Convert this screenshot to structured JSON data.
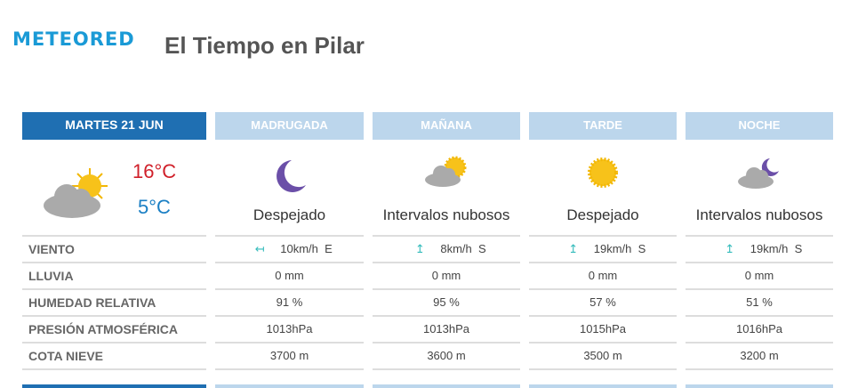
{
  "header": {
    "logo": "METEORED",
    "title": "El Tiempo en Pilar"
  },
  "day": {
    "label": "MARTES 21 JUN",
    "icon": "partly-cloudy-sun-icon",
    "max": "16°C",
    "min": "5°C",
    "max_color": "#d0202a",
    "min_color": "#1a7fc4"
  },
  "row_labels": [
    "VIENTO",
    "LLUVIA",
    "HUMEDAD RELATIVA",
    "PRESIÓN ATMOSFÉRICA",
    "COTA NIEVE"
  ],
  "periods": [
    {
      "name": "MADRUGADA",
      "icon": "moon-icon",
      "desc": "Despejado",
      "wind_icon": "wind-arrow-east-icon",
      "wind": "10km/h  E",
      "rain": "0 mm",
      "humidity": "91 %",
      "pressure": "1013hPa",
      "snow": "3700 m"
    },
    {
      "name": "MAÑANA",
      "icon": "cloud-sun-icon",
      "desc": "Intervalos nubosos",
      "wind_icon": "wind-arrow-south-icon",
      "wind": "8km/h  S",
      "rain": "0 mm",
      "humidity": "95 %",
      "pressure": "1013hPa",
      "snow": "3600 m"
    },
    {
      "name": "TARDE",
      "icon": "sun-icon",
      "desc": "Despejado",
      "wind_icon": "wind-arrow-south-icon",
      "wind": "19km/h  S",
      "rain": "0 mm",
      "humidity": "57 %",
      "pressure": "1015hPa",
      "snow": "3500 m"
    },
    {
      "name": "NOCHE",
      "icon": "cloud-moon-icon",
      "desc": "Intervalos nubosos",
      "wind_icon": "wind-arrow-south-icon",
      "wind": "19km/h  S",
      "rain": "0 mm",
      "humidity": "51 %",
      "pressure": "1016hPa",
      "snow": "3200 m"
    }
  ]
}
